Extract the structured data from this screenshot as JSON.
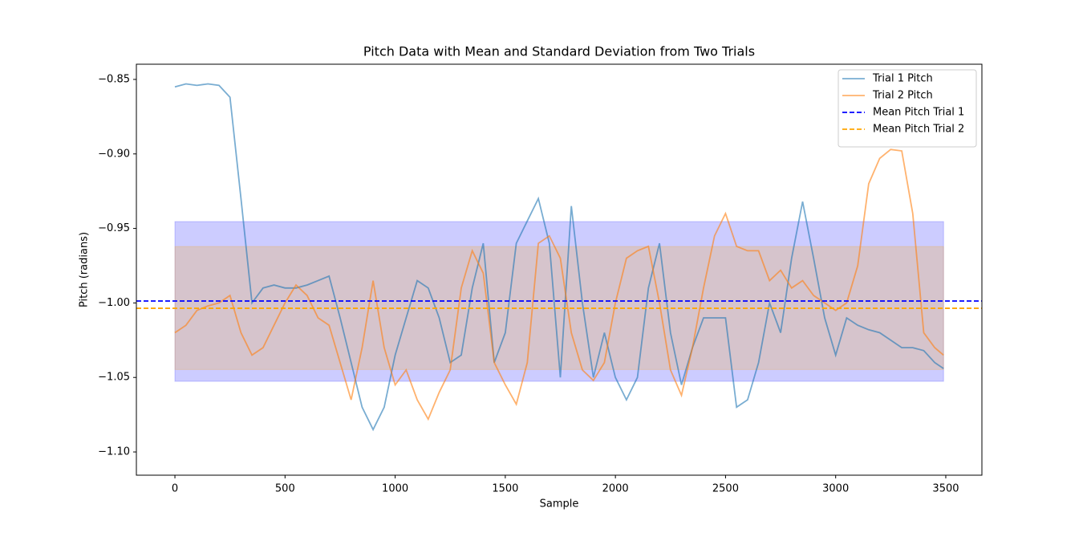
{
  "chart_data": {
    "type": "line",
    "title": "Pitch Data with Mean and Standard Deviation from Two Trials",
    "xlabel": "Sample",
    "ylabel": "Pitch (radians)",
    "x": [
      0,
      50,
      100,
      150,
      200,
      250,
      300,
      350,
      400,
      450,
      500,
      550,
      600,
      650,
      700,
      750,
      800,
      850,
      900,
      950,
      1000,
      1050,
      1100,
      1150,
      1200,
      1250,
      1300,
      1350,
      1400,
      1450,
      1500,
      1550,
      1600,
      1650,
      1700,
      1750,
      1800,
      1850,
      1900,
      1950,
      2000,
      2050,
      2100,
      2150,
      2200,
      2250,
      2300,
      2350,
      2400,
      2450,
      2500,
      2550,
      2600,
      2650,
      2700,
      2750,
      2800,
      2850,
      2900,
      2950,
      3000,
      3050,
      3100,
      3150,
      3200,
      3250,
      3300,
      3350,
      3400,
      3450,
      3490
    ],
    "series": [
      {
        "name": "Trial 1 Pitch",
        "color": "#1f77b4",
        "opacity": 0.6,
        "values": [
          -0.855,
          -0.853,
          -0.854,
          -0.853,
          -0.854,
          -0.862,
          -0.93,
          -1.0,
          -0.99,
          -0.988,
          -0.99,
          -0.99,
          -0.988,
          -0.985,
          -0.982,
          -1.01,
          -1.04,
          -1.07,
          -1.085,
          -1.07,
          -1.035,
          -1.01,
          -0.985,
          -0.99,
          -1.01,
          -1.04,
          -1.035,
          -0.99,
          -0.96,
          -1.04,
          -1.02,
          -0.96,
          -0.945,
          -0.93,
          -0.96,
          -1.05,
          -0.935,
          -1.0,
          -1.05,
          -1.02,
          -1.05,
          -1.065,
          -1.05,
          -0.99,
          -0.96,
          -1.02,
          -1.055,
          -1.03,
          -1.01,
          -1.01,
          -1.01,
          -1.07,
          -1.065,
          -1.04,
          -1.0,
          -1.02,
          -0.97,
          -0.932,
          -0.97,
          -1.01,
          -1.035,
          -1.01,
          -1.015,
          -1.018,
          -1.02,
          -1.025,
          -1.03,
          -1.03,
          -1.032,
          -1.04,
          -1.044
        ]
      },
      {
        "name": "Trial 2 Pitch",
        "color": "#ff7f0e",
        "opacity": 0.6,
        "values": [
          -1.02,
          -1.015,
          -1.005,
          -1.002,
          -1.0,
          -0.995,
          -1.02,
          -1.035,
          -1.03,
          -1.015,
          -1.0,
          -0.988,
          -0.995,
          -1.01,
          -1.015,
          -1.04,
          -1.065,
          -1.03,
          -0.985,
          -1.03,
          -1.055,
          -1.045,
          -1.065,
          -1.078,
          -1.06,
          -1.045,
          -0.99,
          -0.965,
          -0.98,
          -1.04,
          -1.055,
          -1.068,
          -1.04,
          -0.96,
          -0.955,
          -0.97,
          -1.02,
          -1.045,
          -1.052,
          -1.04,
          -1.0,
          -0.97,
          -0.965,
          -0.962,
          -1.0,
          -1.045,
          -1.062,
          -1.03,
          -0.99,
          -0.955,
          -0.94,
          -0.962,
          -0.965,
          -0.965,
          -0.985,
          -0.978,
          -0.99,
          -0.985,
          -0.995,
          -1.0,
          -1.005,
          -1.0,
          -0.975,
          -0.92,
          -0.903,
          -0.897,
          -0.898,
          -0.94,
          -1.02,
          -1.03,
          -1.035
        ]
      }
    ],
    "hlines": [
      {
        "name": "Mean Pitch Trial 1",
        "color": "#0000ff",
        "value": -0.9987
      },
      {
        "name": "Mean Pitch Trial 2",
        "color": "#ffa500",
        "value": -1.0036
      }
    ],
    "bands": [
      {
        "color": "#0000ff",
        "opacity": 0.2,
        "lower": -1.0526,
        "upper": -0.9454,
        "start": 0,
        "end": 3490
      },
      {
        "color": "#ffa500",
        "opacity": 0.2,
        "lower": -1.0447,
        "upper": -0.9621,
        "start": 0,
        "end": 3490
      }
    ],
    "xlim": [
      -175,
      3664
    ],
    "ylim": [
      -1.1156,
      -0.8398
    ],
    "xticks": [
      0,
      500,
      1000,
      1500,
      2000,
      2500,
      3000,
      3500
    ],
    "yticks": [
      {
        "value": -1.1,
        "label": "−1.10"
      },
      {
        "value": -1.05,
        "label": "−1.05"
      },
      {
        "value": -1.0,
        "label": "−1.00"
      },
      {
        "value": -0.95,
        "label": "−0.95"
      },
      {
        "value": -0.9,
        "label": "−0.90"
      },
      {
        "value": -0.85,
        "label": "−0.85"
      }
    ],
    "legend": "upper right"
  }
}
